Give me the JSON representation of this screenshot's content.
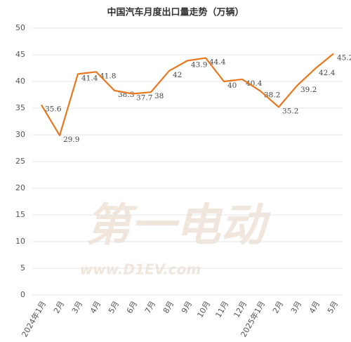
{
  "chart_data": {
    "type": "line",
    "title": "中国汽车月度出口量走势（万辆）",
    "categories": [
      "2024年1月",
      "2月",
      "3月",
      "4月",
      "5月",
      "6月",
      "7月",
      "8月",
      "9月",
      "10月",
      "11月",
      "12月",
      "2025年1月",
      "2月",
      "3月",
      "4月",
      "5月"
    ],
    "series": [
      {
        "name": "出口量",
        "color": "#e8771e",
        "values": [
          35.6,
          29.9,
          41.4,
          41.8,
          38.3,
          37.7,
          38,
          42,
          43.9,
          44.4,
          40,
          40.4,
          38.2,
          35.2,
          39.2,
          42.4,
          45.2
        ]
      }
    ],
    "ylim": [
      0,
      50
    ],
    "yticks": [
      0,
      5,
      10,
      15,
      20,
      25,
      30,
      35,
      40,
      45,
      50
    ],
    "grid": true,
    "watermark": [
      "第一电动",
      "www.D1EV.com"
    ]
  }
}
